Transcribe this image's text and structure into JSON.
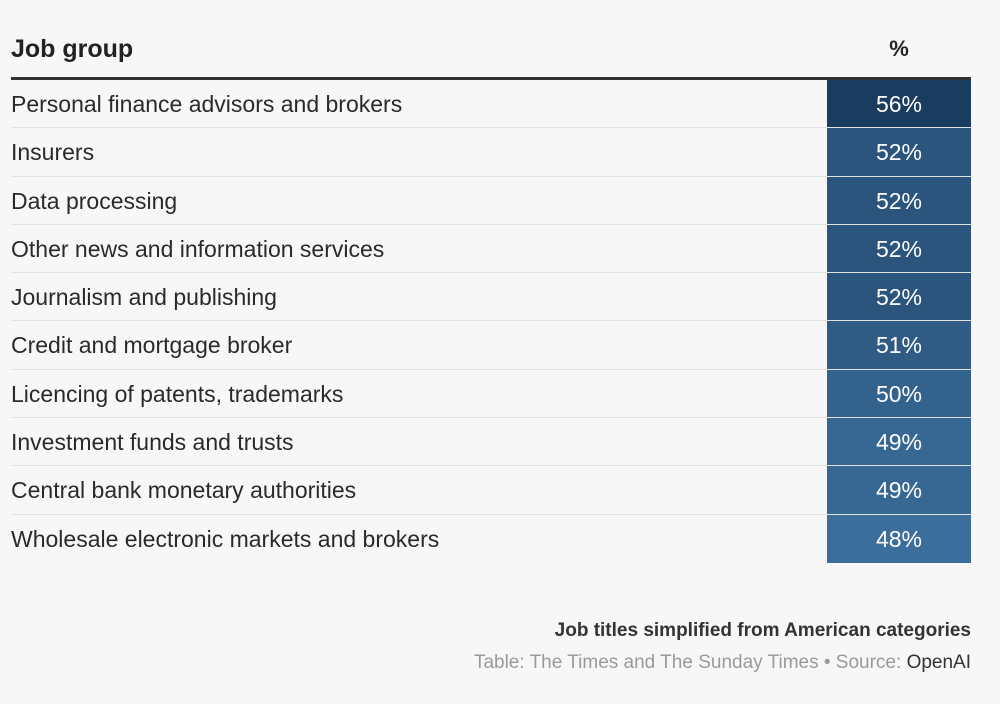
{
  "chart_data": {
    "type": "table",
    "columns": [
      "Job group",
      "%"
    ],
    "rows": [
      {
        "label": "Personal finance advisors and brokers",
        "value": 56,
        "text": "56%"
      },
      {
        "label": "Insurers",
        "value": 52,
        "text": "52%"
      },
      {
        "label": "Data processing",
        "value": 52,
        "text": "52%"
      },
      {
        "label": "Other news and information services",
        "value": 52,
        "text": "52%"
      },
      {
        "label": "Journalism and publishing",
        "value": 52,
        "text": "52%"
      },
      {
        "label": "Credit and mortgage broker",
        "value": 51,
        "text": "51%"
      },
      {
        "label": "Licencing of patents, trademarks",
        "value": 50,
        "text": "50%"
      },
      {
        "label": "Investment funds and trusts",
        "value": 49,
        "text": "49%"
      },
      {
        "label": "Central bank monetary authorities",
        "value": 49,
        "text": "49%"
      },
      {
        "label": "Wholesale electronic markets and brokers",
        "value": 48,
        "text": "48%"
      }
    ],
    "color_scale": {
      "low": "#3b6e9b",
      "high": "#1a3c5e",
      "min": 48,
      "max": 56
    }
  },
  "footer": {
    "note": "Job titles simplified from American categories",
    "credit_prefix": "Table: The Times and The Sunday Times • Source: ",
    "source": "OpenAI"
  }
}
